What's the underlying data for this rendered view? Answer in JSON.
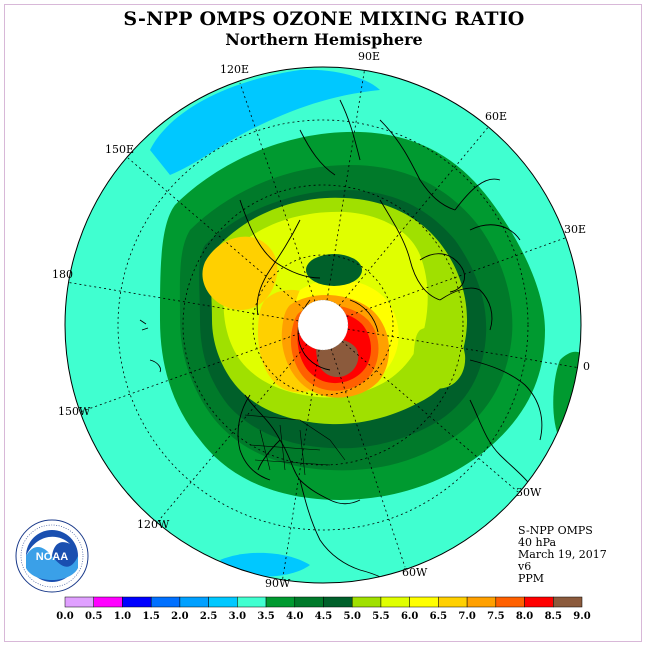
{
  "header": {
    "title": "S-NPP OMPS OZONE MIXING RATIO",
    "subtitle": "Northern Hemisphere"
  },
  "map": {
    "projection": "polar-stereographic",
    "longitude_labels": [
      "90E",
      "60E",
      "30E",
      "0",
      "30W",
      "60W",
      "90W",
      "120W",
      "150W",
      "180",
      "150E",
      "120E"
    ],
    "no_data_region": "north-pole"
  },
  "info": {
    "instrument": "S-NPP OMPS",
    "level": "40 hPa",
    "date": "March 19, 2017",
    "version": "v6",
    "units": "PPM"
  },
  "colorbar": {
    "labels": [
      "0.0",
      "0.5",
      "1.0",
      "1.5",
      "2.0",
      "2.5",
      "3.0",
      "3.5",
      "4.0",
      "4.5",
      "5.0",
      "5.5",
      "6.0",
      "6.5",
      "7.0",
      "7.5",
      "8.0",
      "8.5",
      "9.0"
    ],
    "colors": [
      "#c080ff",
      "#e0a0ff",
      "#ff00ff",
      "#0000ff",
      "#0070ff",
      "#00a0ff",
      "#00c8ff",
      "#40ffd0",
      "#009a30",
      "#007a2a",
      "#00602a",
      "#a0e000",
      "#e0ff00",
      "#ffff00",
      "#ffd000",
      "#ffa000",
      "#ff6000",
      "#ff0000",
      "#8b5a3c"
    ]
  },
  "logo": {
    "text": "NOAA",
    "ring_text": "NATIONAL OCEANIC AND ATMOSPHERIC ADMINISTRATION · U.S. DEPARTMENT OF COMMERCE"
  }
}
